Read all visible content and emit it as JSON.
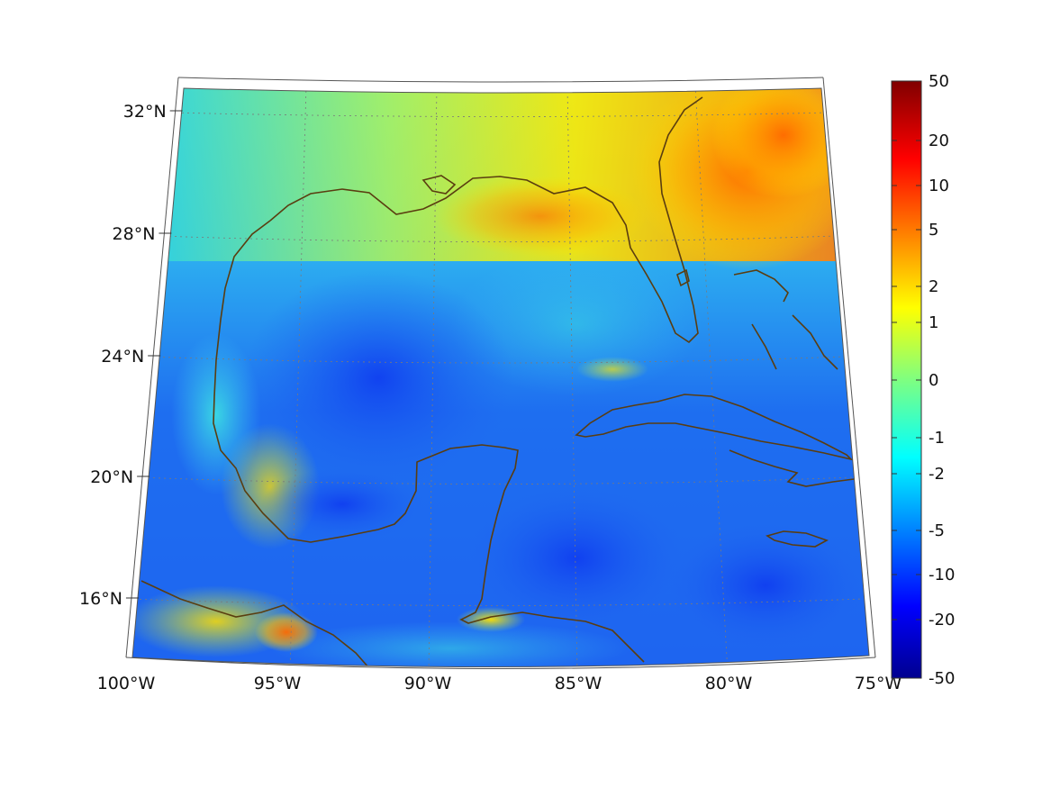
{
  "map": {
    "projection": "conic",
    "lon_range": [
      -100,
      -75
    ],
    "lat_range": [
      14,
      33
    ],
    "lon_ticks": [
      {
        "value": -100,
        "label": "100°W"
      },
      {
        "value": -95,
        "label": "95°W"
      },
      {
        "value": -90,
        "label": "90°W"
      },
      {
        "value": -85,
        "label": "85°W"
      },
      {
        "value": -80,
        "label": "80°W"
      },
      {
        "value": -75,
        "label": "75°W"
      }
    ],
    "lat_ticks": [
      {
        "value": 32,
        "label": "32°N"
      },
      {
        "value": 28,
        "label": "28°N"
      },
      {
        "value": 24,
        "label": "24°N"
      },
      {
        "value": 20,
        "label": "20°N"
      },
      {
        "value": 16,
        "label": "16°N"
      }
    ],
    "grid": true,
    "coastline_color": "#5a3d10",
    "field_description": "anomaly field over Gulf of Mexico and Caribbean",
    "warm_regions": [
      {
        "lon": -79,
        "lat": 30.5,
        "value": 5,
        "radius": 3
      },
      {
        "lon": -81,
        "lat": 28.5,
        "value": 3,
        "radius": 2
      },
      {
        "lon": -85,
        "lat": 29,
        "value": 2,
        "radius": 2
      },
      {
        "lon": -95,
        "lat": 15,
        "value": 5,
        "radius": 1
      },
      {
        "lon": -87.5,
        "lat": 15.8,
        "value": 1.5,
        "radius": 1
      }
    ],
    "cool_regions": [
      {
        "lon": -92,
        "lat": 22,
        "value": -8,
        "radius": 4
      },
      {
        "lon": -84,
        "lat": 17,
        "value": -10,
        "radius": 4
      },
      {
        "lon": -78,
        "lat": 15.5,
        "value": -12,
        "radius": 3
      }
    ]
  },
  "colorbar": {
    "ticks": [
      "50",
      "20",
      "10",
      "5",
      "2",
      "1",
      "0",
      "-1",
      "-2",
      "-5",
      "-10",
      "-20",
      "-50"
    ],
    "colormap": "jet"
  }
}
